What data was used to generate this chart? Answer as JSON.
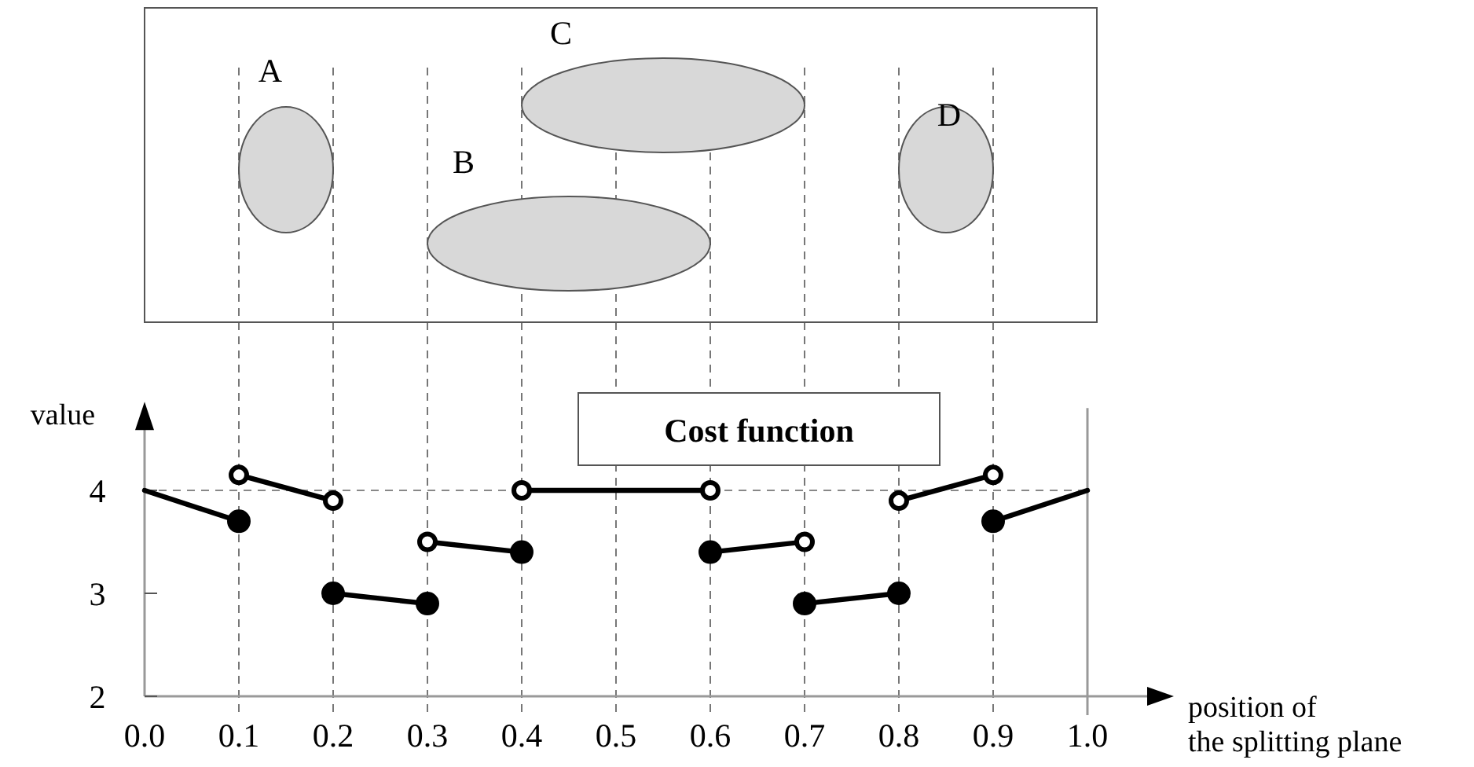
{
  "chart_data": {
    "type": "line",
    "title": "Cost function",
    "xlabel": "position of\nthe splitting plane",
    "ylabel": "value",
    "xlim": [
      0,
      1.0
    ],
    "ylim": [
      2,
      4.8
    ],
    "xticks": [
      {
        "value": 0,
        "label": "0.0"
      },
      0.1,
      0.2,
      0.3,
      0.4,
      0.5,
      0.6,
      0.7,
      0.8,
      0.9,
      {
        "value": 1,
        "label": "1.0"
      }
    ],
    "yticks": [
      2,
      3,
      4
    ],
    "grid": "x",
    "ref_lines": [
      {
        "axis": "y",
        "value": 4,
        "color": "#888888",
        "line_style": "dashed"
      },
      {
        "axis": "x",
        "value": 1.0,
        "color": "#999999",
        "line_style": "solid"
      }
    ],
    "annotations": [
      "A",
      "B",
      "C",
      "D"
    ],
    "series": [
      {
        "color": "#000000",
        "x": [
          0,
          0.1
        ],
        "values": [
          4,
          3.7
        ]
      },
      {
        "color": "#000000",
        "x": [
          0.1,
          0.2
        ],
        "values": [
          4.15,
          3.9
        ]
      },
      {
        "color": "#000000",
        "x": [
          0.2,
          0.3
        ],
        "values": [
          3.0,
          2.9
        ]
      },
      {
        "color": "#000000",
        "x": [
          0.3,
          0.4
        ],
        "values": [
          3.5,
          3.4
        ]
      },
      {
        "color": "#000000",
        "x": [
          0.4,
          0.6
        ],
        "values": [
          4,
          4
        ]
      },
      {
        "color": "#000000",
        "x": [
          0.6,
          0.7
        ],
        "values": [
          3.4,
          3.5
        ]
      },
      {
        "color": "#000000",
        "x": [
          0.7,
          0.8
        ],
        "values": [
          2.9,
          3.0
        ]
      },
      {
        "color": "#000000",
        "x": [
          0.8,
          0.9
        ],
        "values": [
          3.9,
          4.15
        ]
      },
      {
        "color": "#000000",
        "x": [
          0.9,
          1.0
        ],
        "values": [
          3.7,
          4
        ]
      },
      {
        "type": "scatter",
        "color": "#000000",
        "marker": "circle",
        "x": [
          0.1,
          0.2,
          0.3,
          0.4,
          0.6,
          0.7,
          0.8,
          0.9
        ],
        "values": [
          3.7,
          3.0,
          2.9,
          3.4,
          3.4,
          2.9,
          3.0,
          3.7
        ]
      },
      {
        "type": "scatter",
        "color": "#ffffff",
        "marker": "circle",
        "x": [
          0.1,
          0.2,
          0.3,
          0.4,
          0.6,
          0.7,
          0.8,
          0.9
        ],
        "values": [
          4.15,
          3.9,
          3.5,
          4,
          4,
          3.5,
          3.9,
          4.15
        ]
      }
    ]
  }
}
